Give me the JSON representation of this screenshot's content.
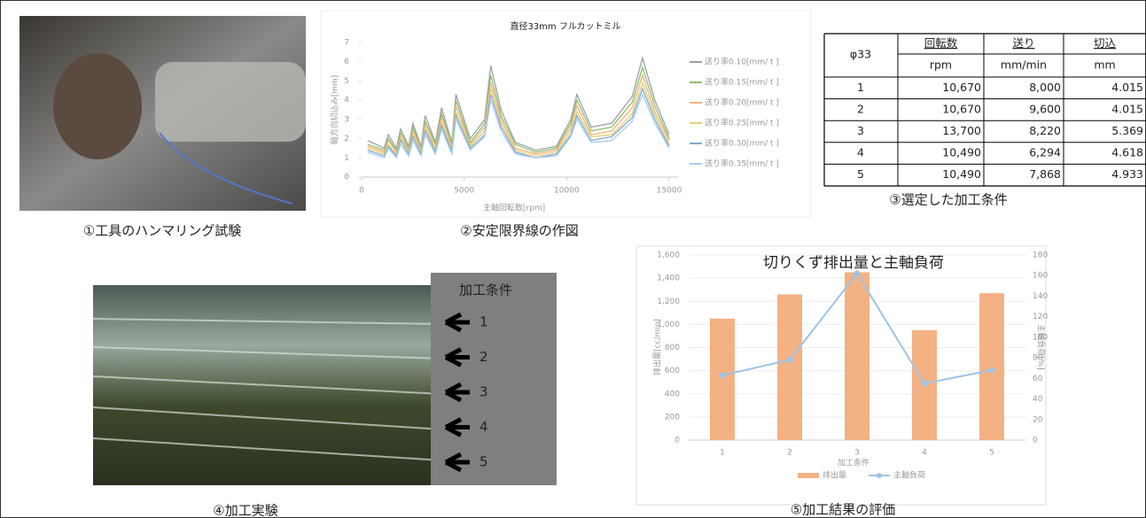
{
  "captions": [
    "①工具のハンマリング試験",
    "②安定限界線の作図",
    "④加工実験",
    "⑤加工結果の評価"
  ],
  "experiment": {
    "label": "加工条件",
    "arrows": [
      "1",
      "2",
      "3",
      "4",
      "5"
    ]
  },
  "table": {
    "corner": "φ33",
    "headers": [
      "回転数",
      "送り",
      "切込"
    ],
    "units": [
      "rpm",
      "mm/min",
      "mm"
    ],
    "rows": [
      [
        "1",
        "10,670",
        "8,000",
        "4.015"
      ],
      [
        "2",
        "10,670",
        "9,600",
        "4.015"
      ],
      [
        "3",
        "13,700",
        "8,220",
        "5.369"
      ],
      [
        "4",
        "10,490",
        "6,294",
        "4.618"
      ],
      [
        "5",
        "10,490",
        "7,868",
        "4.933"
      ]
    ],
    "caption": "③選定した加工条件"
  },
  "chart_data": [
    {
      "type": "line",
      "title": "直径33mm フルカットミル",
      "xlabel": "主軸回転数[rpm]",
      "ylabel": "軸方向切込み[mm]",
      "x": [
        300,
        1100,
        1300,
        1700,
        1900,
        2300,
        2500,
        2900,
        3100,
        3600,
        3900,
        4400,
        4600,
        5300,
        6000,
        6300,
        6800,
        7500,
        8500,
        9500,
        10200,
        10500,
        11200,
        12200,
        13200,
        13700,
        14300,
        15000
      ],
      "xlim": [
        0,
        15000
      ],
      "xticks": [
        0,
        5000,
        10000,
        15000
      ],
      "ylim": [
        0,
        7
      ],
      "yticks": [
        0,
        1,
        2,
        3,
        4,
        5,
        6,
        7
      ],
      "series": [
        {
          "name": "送り率0.10[mm/ t ]",
          "color": "#9aa0a6",
          "values": [
            1.9,
            1.5,
            2.2,
            1.5,
            2.5,
            1.6,
            2.8,
            1.6,
            3.2,
            1.8,
            3.6,
            1.8,
            4.3,
            2.0,
            3.0,
            5.8,
            3.5,
            1.8,
            1.4,
            1.6,
            3.0,
            4.3,
            2.6,
            2.8,
            4.2,
            6.2,
            4.0,
            2.2
          ]
        },
        {
          "name": "送り率0.15[mm/ t ]",
          "color": "#8fbf6a",
          "values": [
            1.7,
            1.4,
            2.0,
            1.4,
            2.3,
            1.5,
            2.6,
            1.5,
            2.9,
            1.7,
            3.3,
            1.7,
            4.0,
            1.8,
            2.8,
            5.3,
            3.2,
            1.7,
            1.3,
            1.5,
            2.8,
            4.0,
            2.4,
            2.6,
            3.9,
            5.7,
            3.7,
            2.0
          ]
        },
        {
          "name": "送り率0.20[mm/ t ]",
          "color": "#f2b27a",
          "values": [
            1.6,
            1.3,
            1.9,
            1.3,
            2.1,
            1.4,
            2.4,
            1.4,
            2.7,
            1.5,
            3.1,
            1.5,
            3.7,
            1.7,
            2.6,
            4.9,
            3.0,
            1.5,
            1.2,
            1.4,
            2.6,
            3.7,
            2.2,
            2.4,
            3.6,
            5.3,
            3.4,
            1.9
          ]
        },
        {
          "name": "送り率0.25[mm/ t ]",
          "color": "#e6d070",
          "values": [
            1.5,
            1.2,
            1.7,
            1.2,
            2.0,
            1.3,
            2.2,
            1.3,
            2.5,
            1.4,
            2.8,
            1.4,
            3.4,
            1.6,
            2.4,
            4.6,
            2.8,
            1.4,
            1.1,
            1.3,
            2.4,
            3.4,
            2.1,
            2.2,
            3.3,
            4.9,
            3.2,
            1.7
          ]
        },
        {
          "name": "送り率0.30[mm/ t ]",
          "color": "#7fa8d8",
          "values": [
            1.4,
            1.1,
            1.6,
            1.1,
            1.9,
            1.2,
            2.1,
            1.2,
            2.4,
            1.3,
            2.7,
            1.3,
            3.2,
            1.5,
            2.2,
            4.3,
            2.6,
            1.3,
            1.0,
            1.2,
            2.2,
            3.2,
            1.9,
            2.1,
            3.1,
            4.6,
            3.0,
            1.6
          ]
        },
        {
          "name": "送り率0.35[mm/ t ]",
          "color": "#a8cdec",
          "values": [
            1.3,
            1.0,
            1.5,
            1.0,
            1.7,
            1.1,
            1.9,
            1.1,
            2.2,
            1.2,
            2.5,
            1.2,
            3.0,
            1.4,
            2.1,
            4.0,
            2.4,
            1.2,
            1.0,
            1.1,
            2.1,
            3.0,
            1.8,
            1.9,
            2.9,
            4.3,
            2.8,
            1.5
          ]
        }
      ]
    },
    {
      "type": "bar",
      "title": "切りくず排出量と主軸負荷",
      "xlabel": "加工条件",
      "ylabel": "排出量[cc/min]",
      "y2label": "主軸負荷[%]",
      "categories": [
        "1",
        "2",
        "3",
        "4",
        "5"
      ],
      "ylim": [
        0,
        1600
      ],
      "yticks": [
        0,
        200,
        400,
        600,
        800,
        {
          "value": 1000,
          "label": "1,000"
        },
        {
          "value": 1200,
          "label": "1,200"
        },
        {
          "value": 1400,
          "label": "1,400"
        },
        {
          "value": 1600,
          "label": "1,600"
        }
      ],
      "y2lim": [
        0,
        180
      ],
      "y2ticks": [
        0,
        20,
        40,
        60,
        80,
        100,
        120,
        140,
        160,
        180
      ],
      "grid": true,
      "legend": "bottom",
      "series": [
        {
          "name": "排出量",
          "type": "bar",
          "color": "#f4b183",
          "values": [
            1050,
            1260,
            1450,
            950,
            1270
          ]
        },
        {
          "name": "主軸負荷",
          "type": "line",
          "axis": "y2",
          "color": "#9dc3e6",
          "values": [
            63,
            78,
            162,
            55,
            68
          ]
        }
      ]
    }
  ]
}
